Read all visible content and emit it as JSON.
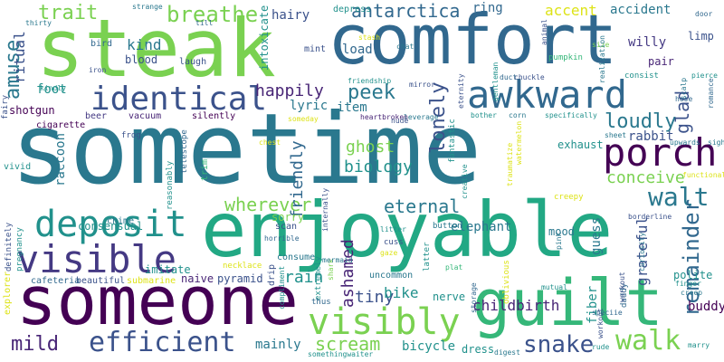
{
  "palette": {
    "green_light": "#7ad151",
    "green_mid": "#35b779",
    "teal": "#21918c",
    "teal_dark": "#2a788e",
    "blue": "#31688e",
    "indigo": "#3b528b",
    "violet": "#443983",
    "purple": "#482576",
    "purple_dark": "#440154",
    "yellow_green": "#bddf26",
    "yellow": "#dde318",
    "mint": "#22a884"
  },
  "words": [
    {
      "text": "sometime",
      "color": "#2a788e"
    },
    {
      "text": "comfort",
      "color": "#31688e"
    },
    {
      "text": "steak",
      "color": "#7ad151"
    },
    {
      "text": "enjoyable",
      "color": "#22a884"
    },
    {
      "text": "someone",
      "color": "#440154"
    },
    {
      "text": "guilt",
      "color": "#35b779"
    },
    {
      "text": "awkward",
      "color": "#31688e"
    },
    {
      "text": "porch",
      "color": "#440154"
    },
    {
      "text": "deposit",
      "color": "#21918c"
    },
    {
      "text": "identical",
      "color": "#3b528b"
    },
    {
      "text": "visible",
      "color": "#443983"
    },
    {
      "text": "visibly",
      "color": "#7ad151"
    },
    {
      "text": "efficient",
      "color": "#3b528b"
    },
    {
      "text": "walk",
      "color": "#7ad151"
    },
    {
      "text": "snake",
      "color": "#3b528b"
    },
    {
      "text": "mild",
      "color": "#482576"
    },
    {
      "text": "walt",
      "color": "#2a788e"
    },
    {
      "text": "remainder",
      "color": "#31688e"
    },
    {
      "text": "breathe",
      "color": "#7ad151"
    },
    {
      "text": "trait",
      "color": "#7ad151"
    },
    {
      "text": "amuse",
      "color": "#2a788e"
    },
    {
      "text": "antarctica",
      "color": "#31688e"
    },
    {
      "text": "loudly",
      "color": "#2a788e"
    },
    {
      "text": "peek",
      "color": "#2a788e"
    },
    {
      "text": "lonely",
      "color": "#3b528b"
    },
    {
      "text": "happily",
      "color": "#482576"
    },
    {
      "text": "conceive",
      "color": "#7ad151"
    },
    {
      "text": "eternal",
      "color": "#2a788e"
    },
    {
      "text": "wherever",
      "color": "#7ad151"
    },
    {
      "text": "scream",
      "color": "#7ad151"
    },
    {
      "text": "friendly",
      "color": "#31688e"
    },
    {
      "text": "ghost",
      "color": "#7ad151"
    },
    {
      "text": "biology",
      "color": "#21918c"
    },
    {
      "text": "tiny",
      "color": "#3b528b"
    },
    {
      "text": "bike",
      "color": "#21918c"
    },
    {
      "text": "mainly",
      "color": "#2a788e"
    },
    {
      "text": "bicycle",
      "color": "#21918c"
    },
    {
      "text": "glad",
      "color": "#3b528b"
    },
    {
      "text": "buddy",
      "color": "#440154"
    },
    {
      "text": "ashamed",
      "color": "#482576"
    },
    {
      "text": "rain",
      "color": "#21918c"
    },
    {
      "text": "grateful",
      "color": "#3b528b"
    },
    {
      "text": "accent",
      "color": "#dde318"
    },
    {
      "text": "accident",
      "color": "#2a788e"
    },
    {
      "text": "willy",
      "color": "#443983"
    },
    {
      "text": "limp",
      "color": "#3b528b"
    },
    {
      "text": "pair",
      "color": "#482576"
    },
    {
      "text": "ritual",
      "color": "#3b528b"
    },
    {
      "text": "kind",
      "color": "#2a788e"
    },
    {
      "text": "foot",
      "color": "#21918c"
    },
    {
      "text": "shotgun",
      "color": "#440154"
    },
    {
      "text": "raccoon",
      "color": "#2a788e"
    },
    {
      "text": "hairy",
      "color": "#3b528b"
    },
    {
      "text": "lyric",
      "color": "#2a788e"
    },
    {
      "text": "item",
      "color": "#2a788e"
    },
    {
      "text": "rabbit",
      "color": "#3b528b"
    },
    {
      "text": "childbirth",
      "color": "#482576"
    },
    {
      "text": "elephant",
      "color": "#2a788e"
    },
    {
      "text": "naive",
      "color": "#482576"
    },
    {
      "text": "pyramid",
      "color": "#3b528b"
    },
    {
      "text": "sorry",
      "color": "#7ad151"
    },
    {
      "text": "dress",
      "color": "#21918c"
    },
    {
      "text": "ring",
      "color": "#31688e"
    },
    {
      "text": "load",
      "color": "#31688e"
    },
    {
      "text": "mood",
      "color": "#2a788e"
    },
    {
      "text": "guess",
      "color": "#2a788e"
    },
    {
      "text": "fiber",
      "color": "#21918c"
    },
    {
      "text": "exhaust",
      "color": "#21918c"
    },
    {
      "text": "consensual",
      "color": "#21918c"
    },
    {
      "text": "imitate",
      "color": "#21918c"
    },
    {
      "text": "nerve",
      "color": "#21918c"
    },
    {
      "text": "polite",
      "color": "#21918c"
    },
    {
      "text": "beautiful",
      "color": "#3b528b"
    },
    {
      "text": "cafeteria",
      "color": "#31688e"
    },
    {
      "text": "chime",
      "color": "#2a788e"
    },
    {
      "text": "consume",
      "color": "#2a788e"
    },
    {
      "text": "depress",
      "color": "#21918c"
    },
    {
      "text": "intoxicate",
      "color": "#21918c"
    },
    {
      "text": "blood",
      "color": "#3b528b"
    },
    {
      "text": "bird",
      "color": "#31688e"
    },
    {
      "text": "laugh",
      "color": "#3b528b"
    },
    {
      "text": "mint",
      "color": "#3b528b"
    },
    {
      "text": "cigarette",
      "color": "#440154"
    },
    {
      "text": "vacuum",
      "color": "#482576"
    },
    {
      "text": "silently",
      "color": "#440154"
    },
    {
      "text": "beer",
      "color": "#443983"
    },
    {
      "text": "vivid",
      "color": "#21918c"
    },
    {
      "text": "fairy",
      "color": "#3b528b"
    },
    {
      "text": "explorer",
      "color": "#dde318"
    },
    {
      "text": "definitely",
      "color": "#3b528b"
    },
    {
      "text": "pregnancy",
      "color": "#21918c"
    },
    {
      "text": "frog",
      "color": "#3b528b"
    },
    {
      "text": "telescope",
      "color": "#31688e"
    },
    {
      "text": "trim",
      "color": "#35b779"
    },
    {
      "text": "reasonably",
      "color": "#21918c"
    },
    {
      "text": "submarine",
      "color": "#dde318"
    },
    {
      "text": "necklace",
      "color": "#dde318"
    },
    {
      "text": "drip",
      "color": "#3b528b"
    },
    {
      "text": "scan",
      "color": "#3b528b"
    },
    {
      "text": "horrible",
      "color": "#31688e"
    },
    {
      "text": "compliment",
      "color": "#21918c"
    },
    {
      "text": "extremely",
      "color": "#21918c"
    },
    {
      "text": "shark",
      "color": "#7ad151"
    },
    {
      "text": "mermaid",
      "color": "#2a788e"
    },
    {
      "text": "thus",
      "color": "#31688e"
    },
    {
      "text": "uncommon",
      "color": "#2a788e"
    },
    {
      "text": "cuss",
      "color": "#3b528b"
    },
    {
      "text": "gaze",
      "color": "#dde318"
    },
    {
      "text": "latter",
      "color": "#21918c"
    },
    {
      "text": "plat",
      "color": "#35b779"
    },
    {
      "text": "litter",
      "color": "#21918c"
    },
    {
      "text": "button",
      "color": "#2a788e"
    },
    {
      "text": "fantastic",
      "color": "#21918c"
    },
    {
      "text": "creative",
      "color": "#21918c"
    },
    {
      "text": "storage",
      "color": "#31688e"
    },
    {
      "text": "oblivious",
      "color": "#dde318"
    },
    {
      "text": "digest",
      "color": "#2a788e"
    },
    {
      "text": "somethingwaiter",
      "color": "#21918c"
    },
    {
      "text": "rude",
      "color": "#21918c"
    },
    {
      "text": "marry",
      "color": "#21918c"
    },
    {
      "text": "finger",
      "color": "#21918c"
    },
    {
      "text": "creep",
      "color": "#2a788e"
    },
    {
      "text": "speciie",
      "color": "#31688e"
    },
    {
      "text": "workout",
      "color": "#3b528b"
    },
    {
      "text": "daddy",
      "color": "#31688e"
    },
    {
      "text": "mutual",
      "color": "#21918c"
    },
    {
      "text": "pink",
      "color": "#2a788e"
    },
    {
      "text": "curiosity",
      "color": "#2a788e"
    },
    {
      "text": "borderline",
      "color": "#3b528b"
    },
    {
      "text": "creepy",
      "color": "#dde318"
    },
    {
      "text": "functional",
      "color": "#dde318"
    },
    {
      "text": "upwards",
      "color": "#2a788e"
    },
    {
      "text": "sigh",
      "color": "#2a788e"
    },
    {
      "text": "sheet",
      "color": "#2a788e"
    },
    {
      "text": "romance",
      "color": "#31688e"
    },
    {
      "text": "hose",
      "color": "#31688e"
    },
    {
      "text": "scalp",
      "color": "#2a788e"
    },
    {
      "text": "specifically",
      "color": "#21918c"
    },
    {
      "text": "corn",
      "color": "#2a788e"
    },
    {
      "text": "consist",
      "color": "#21918c"
    },
    {
      "text": "pierce",
      "color": "#21918c"
    },
    {
      "text": "size",
      "color": "#7ad151"
    },
    {
      "text": "realization",
      "color": "#2a788e"
    },
    {
      "text": "door",
      "color": "#31688e"
    },
    {
      "text": "animal",
      "color": "#3b528b"
    },
    {
      "text": "pumpkin",
      "color": "#35b779"
    },
    {
      "text": "chuckle",
      "color": "#3b528b"
    },
    {
      "text": "gentleman",
      "color": "#21918c"
    },
    {
      "text": "duct",
      "color": "#31688e"
    },
    {
      "text": "bother",
      "color": "#21918c"
    },
    {
      "text": "traumatize",
      "color": "#dde318"
    },
    {
      "text": "watermelon",
      "color": "#dde318"
    },
    {
      "text": "eternity",
      "color": "#3b528b"
    },
    {
      "text": "mirror",
      "color": "#3b528b"
    },
    {
      "text": "leverage",
      "color": "#2a788e"
    },
    {
      "text": "heartbroken",
      "color": "#482576"
    },
    {
      "text": "chat",
      "color": "#2a788e"
    },
    {
      "text": "friendship",
      "color": "#21918c"
    },
    {
      "text": "stash",
      "color": "#dde318"
    },
    {
      "text": "nude",
      "color": "#3b528b"
    },
    {
      "text": "someday",
      "color": "#dde318"
    },
    {
      "text": "chest",
      "color": "#dde318"
    },
    {
      "text": "iron",
      "color": "#3b528b"
    },
    {
      "text": "kindly",
      "color": "#21918c"
    },
    {
      "text": "thirty",
      "color": "#2a788e"
    },
    {
      "text": "strange",
      "color": "#2a788e"
    },
    {
      "text": "till",
      "color": "#31688e"
    },
    {
      "text": "workout",
      "color": "#3b528b"
    },
    {
      "text": "internally",
      "color": "#3b528b"
    }
  ]
}
